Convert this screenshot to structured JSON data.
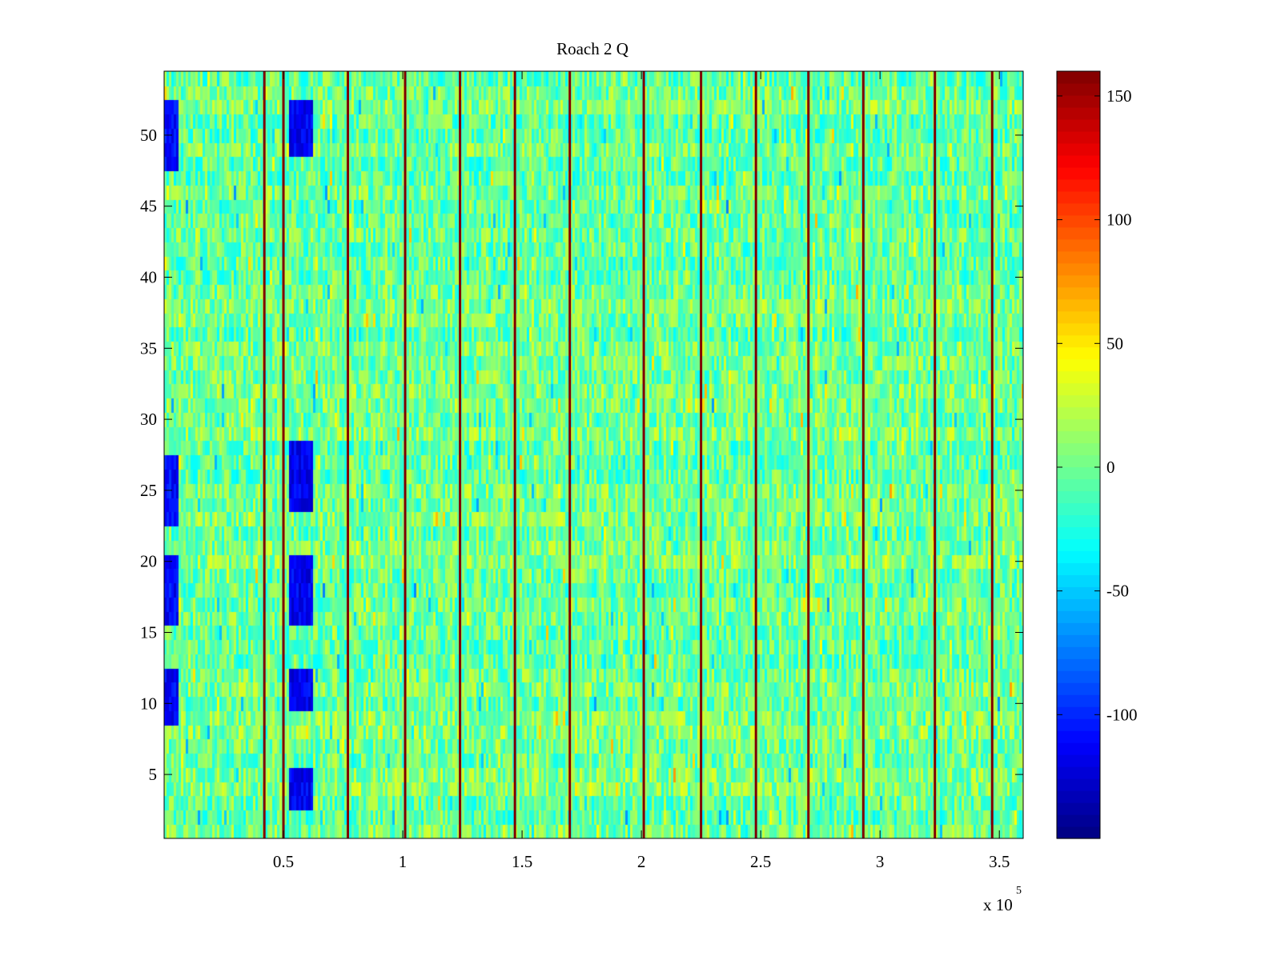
{
  "chart_data": {
    "type": "heatmap",
    "title": "Roach 2 Q",
    "xlabel": "",
    "ylabel": "",
    "x_exponent_label": "x 10",
    "x_exponent": "5",
    "xlim": [
      0,
      3.6
    ],
    "ylim": [
      0.5,
      54.5
    ],
    "x_ticks": [
      0.5,
      1,
      1.5,
      2,
      2.5,
      3,
      3.5
    ],
    "x_tick_labels": [
      "0.5",
      "1",
      "1.5",
      "2",
      "2.5",
      "3",
      "3.5"
    ],
    "y_ticks": [
      5,
      10,
      15,
      20,
      25,
      30,
      35,
      40,
      45,
      50
    ],
    "y_tick_labels": [
      "5",
      "10",
      "15",
      "20",
      "25",
      "30",
      "35",
      "40",
      "45",
      "50"
    ],
    "rows": 54,
    "colormap": "jet",
    "colorbar": {
      "range": [
        -150,
        160
      ],
      "ticks": [
        150,
        100,
        50,
        0,
        -50,
        -100
      ],
      "tick_labels": [
        "150",
        "100",
        "50",
        "0",
        "-50",
        "-100"
      ]
    },
    "spike_columns_x": [
      0.42,
      0.5,
      0.77,
      1.01,
      1.24,
      1.47,
      1.7,
      2.01,
      2.25,
      2.48,
      2.7,
      2.93,
      3.23,
      3.47
    ],
    "spike_value": 160,
    "low_value_regions": [
      {
        "x_range": [
          0.0,
          0.06
        ],
        "rows": [
          [
            9,
            12
          ],
          [
            16,
            20
          ],
          [
            23,
            27
          ],
          [
            48,
            52
          ]
        ],
        "value": -110
      },
      {
        "x_range": [
          0.52,
          0.62
        ],
        "rows": [
          [
            3,
            5
          ],
          [
            10,
            12
          ],
          [
            16,
            20
          ],
          [
            24,
            28
          ],
          [
            49,
            52
          ]
        ],
        "value": -115
      }
    ]
  }
}
